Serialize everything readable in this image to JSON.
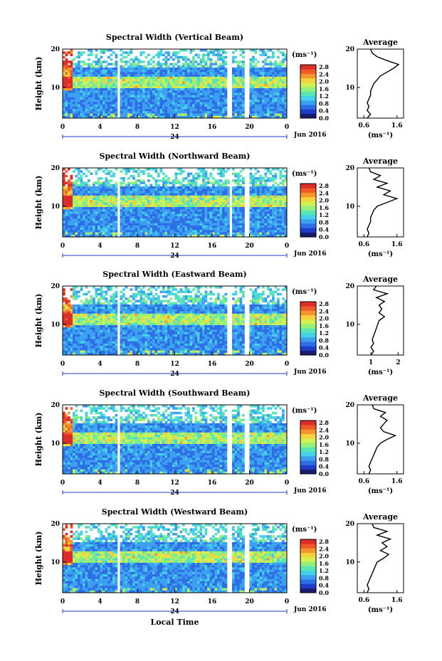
{
  "common": {
    "xlabel": "Local Time",
    "ylabel": "Height (km)",
    "date_label": "Jun 2016",
    "day_label": "24",
    "colorbar_unit": "(ms⁻¹)",
    "average_title": "Average",
    "average_xunit": "(ms⁻¹)",
    "colorbar_ticks": [
      "2.8",
      "2.4",
      "2.0",
      "1.6",
      "1.2",
      "0.8",
      "0.4",
      "0.0"
    ],
    "colormap": [
      "#1a1a6e",
      "#1e3cc8",
      "#2d6ee6",
      "#3ca0f0",
      "#46d2e6",
      "#5ae6b4",
      "#96f078",
      "#d2f050",
      "#f5d23c",
      "#f5962d",
      "#f05a28",
      "#dc2d28"
    ]
  },
  "chart_data": [
    {
      "type": "heatmap",
      "title": "Spectral Width (Vertical Beam)",
      "x_ticks": [
        "0",
        "4",
        "8",
        "12",
        "16",
        "20",
        "0"
      ],
      "y_ticks": [
        "20",
        "10"
      ],
      "xlim": [
        0,
        24
      ],
      "ylim": [
        2,
        20
      ],
      "colorbar_range": [
        0.0,
        2.8
      ],
      "data_gaps_hours": [
        [
          5.8,
          6.1
        ],
        [
          17.7,
          18.2
        ],
        [
          19.6,
          19.9
        ]
      ],
      "average_profile": {
        "title": "Average",
        "x_ticks": [
          "0.6",
          "1.6"
        ],
        "xlim": [
          0.4,
          1.8
        ],
        "y_ticks": [
          "20",
          "10"
        ],
        "ylim": [
          2,
          20
        ],
        "height_km": [
          2,
          3,
          4,
          5,
          6,
          7,
          8,
          9,
          10,
          11,
          12,
          13,
          14,
          15,
          16,
          17,
          18,
          19,
          20
        ],
        "width_ms": [
          0.7,
          0.8,
          0.7,
          0.75,
          0.7,
          0.75,
          0.8,
          0.8,
          0.85,
          0.9,
          1.0,
          1.1,
          1.3,
          1.5,
          1.65,
          1.3,
          1.0,
          0.85,
          0.8
        ]
      }
    },
    {
      "type": "heatmap",
      "title": "Spectral Width (Northward Beam)",
      "x_ticks": [
        "0",
        "4",
        "8",
        "12",
        "16",
        "20",
        "0"
      ],
      "y_ticks": [
        "20",
        "10"
      ],
      "xlim": [
        0,
        24
      ],
      "ylim": [
        2,
        20
      ],
      "colorbar_range": [
        0.0,
        2.8
      ],
      "data_gaps_hours": [
        [
          5.8,
          6.1
        ],
        [
          17.8,
          18.2
        ],
        [
          19.6,
          19.9
        ]
      ],
      "average_profile": {
        "title": "Average",
        "x_ticks": [
          "0.6",
          "1.6"
        ],
        "xlim": [
          0.4,
          1.8
        ],
        "y_ticks": [
          "20",
          "10"
        ],
        "ylim": [
          2,
          20
        ],
        "height_km": [
          2,
          3,
          4,
          5,
          6,
          7,
          8,
          9,
          10,
          11,
          12,
          13,
          14,
          15,
          16,
          17,
          18,
          19,
          20
        ],
        "width_ms": [
          0.7,
          0.75,
          0.7,
          0.75,
          0.8,
          0.8,
          0.85,
          0.9,
          1.0,
          1.3,
          1.6,
          1.2,
          1.4,
          1.0,
          1.3,
          0.9,
          1.1,
          0.8,
          0.75
        ]
      }
    },
    {
      "type": "heatmap",
      "title": "Spectral Width (Eastward Beam)",
      "x_ticks": [
        "0",
        "4",
        "8",
        "12",
        "16",
        "20",
        "0"
      ],
      "y_ticks": [
        "20",
        "10"
      ],
      "xlim": [
        0,
        24
      ],
      "ylim": [
        2,
        20
      ],
      "colorbar_range": [
        0.0,
        2.8
      ],
      "data_gaps_hours": [
        [
          5.8,
          6.1
        ],
        [
          17.7,
          18.2
        ],
        [
          19.6,
          19.9
        ]
      ],
      "average_profile": {
        "title": "Average",
        "x_ticks": [
          "1",
          "2"
        ],
        "xlim": [
          0.5,
          2.2
        ],
        "y_ticks": [
          "20",
          "10"
        ],
        "ylim": [
          2,
          20
        ],
        "height_km": [
          2,
          3,
          4,
          5,
          6,
          7,
          8,
          9,
          10,
          11,
          12,
          13,
          14,
          15,
          16,
          17,
          18,
          19,
          20
        ],
        "width_ms": [
          1.0,
          1.1,
          1.0,
          1.1,
          1.05,
          1.1,
          1.15,
          1.2,
          1.25,
          1.3,
          1.5,
          1.3,
          1.4,
          1.3,
          1.5,
          1.2,
          1.6,
          1.1,
          1.2
        ]
      }
    },
    {
      "type": "heatmap",
      "title": "Spectral Width (Southward Beam)",
      "x_ticks": [
        "0",
        "4",
        "8",
        "12",
        "16",
        "20",
        "0"
      ],
      "y_ticks": [
        "20",
        "10"
      ],
      "xlim": [
        0,
        24
      ],
      "ylim": [
        2,
        20
      ],
      "colorbar_range": [
        0.0,
        2.8
      ],
      "data_gaps_hours": [
        [
          5.8,
          6.1
        ],
        [
          17.7,
          18.2
        ],
        [
          19.6,
          19.9
        ]
      ],
      "average_profile": {
        "title": "Average",
        "x_ticks": [
          "0.6",
          "1.6"
        ],
        "xlim": [
          0.4,
          1.8
        ],
        "y_ticks": [
          "20",
          "10"
        ],
        "ylim": [
          2,
          20
        ],
        "height_km": [
          2,
          3,
          4,
          5,
          6,
          7,
          8,
          9,
          10,
          11,
          12,
          13,
          14,
          15,
          16,
          17,
          18,
          19,
          20
        ],
        "width_ms": [
          0.75,
          0.8,
          0.75,
          0.8,
          0.85,
          0.9,
          0.95,
          1.0,
          1.1,
          1.3,
          1.55,
          1.2,
          1.1,
          1.2,
          1.3,
          1.1,
          1.25,
          0.9,
          0.85
        ]
      }
    },
    {
      "type": "heatmap",
      "title": "Spectral Width (Westward Beam)",
      "x_ticks": [
        "0",
        "4",
        "8",
        "12",
        "16",
        "20",
        "0"
      ],
      "y_ticks": [
        "20",
        "10"
      ],
      "xlim": [
        0,
        24
      ],
      "ylim": [
        2,
        20
      ],
      "colorbar_range": [
        0.0,
        2.8
      ],
      "data_gaps_hours": [
        [
          5.8,
          6.1
        ],
        [
          17.7,
          18.2
        ],
        [
          19.6,
          19.9
        ]
      ],
      "average_profile": {
        "title": "Average",
        "x_ticks": [
          "0.6",
          "1.6"
        ],
        "xlim": [
          0.4,
          1.8
        ],
        "y_ticks": [
          "20",
          "10"
        ],
        "ylim": [
          2,
          20
        ],
        "height_km": [
          2,
          3,
          4,
          5,
          6,
          7,
          8,
          9,
          10,
          11,
          12,
          13,
          14,
          15,
          16,
          17,
          18,
          19,
          20
        ],
        "width_ms": [
          0.7,
          0.75,
          0.7,
          0.75,
          0.8,
          0.85,
          0.9,
          0.95,
          1.0,
          1.2,
          1.35,
          1.1,
          1.3,
          1.15,
          1.4,
          1.0,
          1.3,
          0.9,
          0.85
        ]
      }
    }
  ]
}
